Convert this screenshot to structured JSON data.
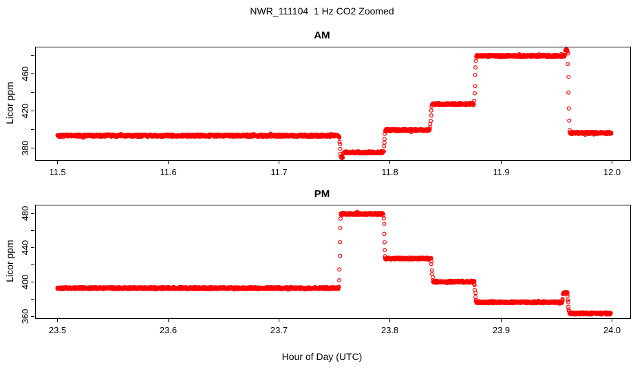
{
  "figure": {
    "title": "NWR_111104  1 Hz CO2 Zoomed",
    "background": "#ffffff",
    "text_color": "#000000"
  },
  "chart_data": {
    "type": "scatter",
    "title": "NWR_111104  1 Hz CO2 Zoomed",
    "xlabel": "Hour of Day (UTC)",
    "ylabel": "Licor ppm",
    "marker": "open-circle",
    "point_color": "#ff0000",
    "frame_color": "#000000",
    "sample_rate_hz": 1,
    "legend": "none",
    "grid": false,
    "panels": [
      {
        "title": "AM",
        "ylabel": "Licor ppm",
        "xlim": [
          11.48,
          12.017
        ],
        "ylim": [
          366.7,
          488.9
        ],
        "xticks": [
          {
            "v": 11.5,
            "label": "11.5"
          },
          {
            "v": 11.6,
            "label": "11.6"
          },
          {
            "v": 11.7,
            "label": "11.7"
          },
          {
            "v": 11.8,
            "label": "11.8"
          },
          {
            "v": 11.9,
            "label": "11.9"
          },
          {
            "v": 12.0,
            "label": "12.0"
          }
        ],
        "yticks": [
          {
            "v": 380,
            "label": "380"
          },
          {
            "v": 400,
            "label": ""
          },
          {
            "v": 420,
            "label": "420"
          },
          {
            "v": 440,
            "label": ""
          },
          {
            "v": 460,
            "label": "460"
          },
          {
            "v": 480,
            "label": ""
          }
        ],
        "segments": [
          {
            "t0": 11.5,
            "t1": 11.754,
            "v": 393
          },
          {
            "t0": 11.7562,
            "t1": 11.7578,
            "v": 369.5
          },
          {
            "t0": 11.7582,
            "t1": 11.794,
            "v": 375
          },
          {
            "t0": 11.7962,
            "t1": 11.836,
            "v": 399
          },
          {
            "t0": 11.8382,
            "t1": 11.876,
            "v": 427
          },
          {
            "t0": 11.8782,
            "t1": 11.958,
            "v": 479
          },
          {
            "t0": 11.9586,
            "t1": 11.9602,
            "v": 486
          },
          {
            "t0": 11.9625,
            "t1": 12.0,
            "v": 396
          }
        ]
      },
      {
        "title": "PM",
        "ylabel": "Licor ppm",
        "xlim": [
          23.48,
          24.017
        ],
        "ylim": [
          357.5,
          489.8
        ],
        "xticks": [
          {
            "v": 23.5,
            "label": "23.5"
          },
          {
            "v": 23.6,
            "label": "23.6"
          },
          {
            "v": 23.7,
            "label": "23.7"
          },
          {
            "v": 23.8,
            "label": "23.8"
          },
          {
            "v": 23.9,
            "label": "23.9"
          },
          {
            "v": 24.0,
            "label": "24.0"
          }
        ],
        "yticks": [
          {
            "v": 360,
            "label": "360"
          },
          {
            "v": 380,
            "label": ""
          },
          {
            "v": 400,
            "label": "400"
          },
          {
            "v": 420,
            "label": ""
          },
          {
            "v": 440,
            "label": "440"
          },
          {
            "v": 460,
            "label": ""
          },
          {
            "v": 480,
            "label": "480"
          }
        ],
        "segments": [
          {
            "t0": 23.5,
            "t1": 23.754,
            "v": 392.5
          },
          {
            "t0": 23.7562,
            "t1": 23.794,
            "v": 479
          },
          {
            "t0": 23.7962,
            "t1": 23.837,
            "v": 427
          },
          {
            "t0": 23.8392,
            "t1": 23.876,
            "v": 400
          },
          {
            "t0": 23.8782,
            "t1": 23.9555,
            "v": 376
          },
          {
            "t0": 23.9568,
            "t1": 23.9598,
            "v": 387
          },
          {
            "t0": 23.9625,
            "t1": 24.0,
            "v": 363
          }
        ]
      }
    ]
  }
}
